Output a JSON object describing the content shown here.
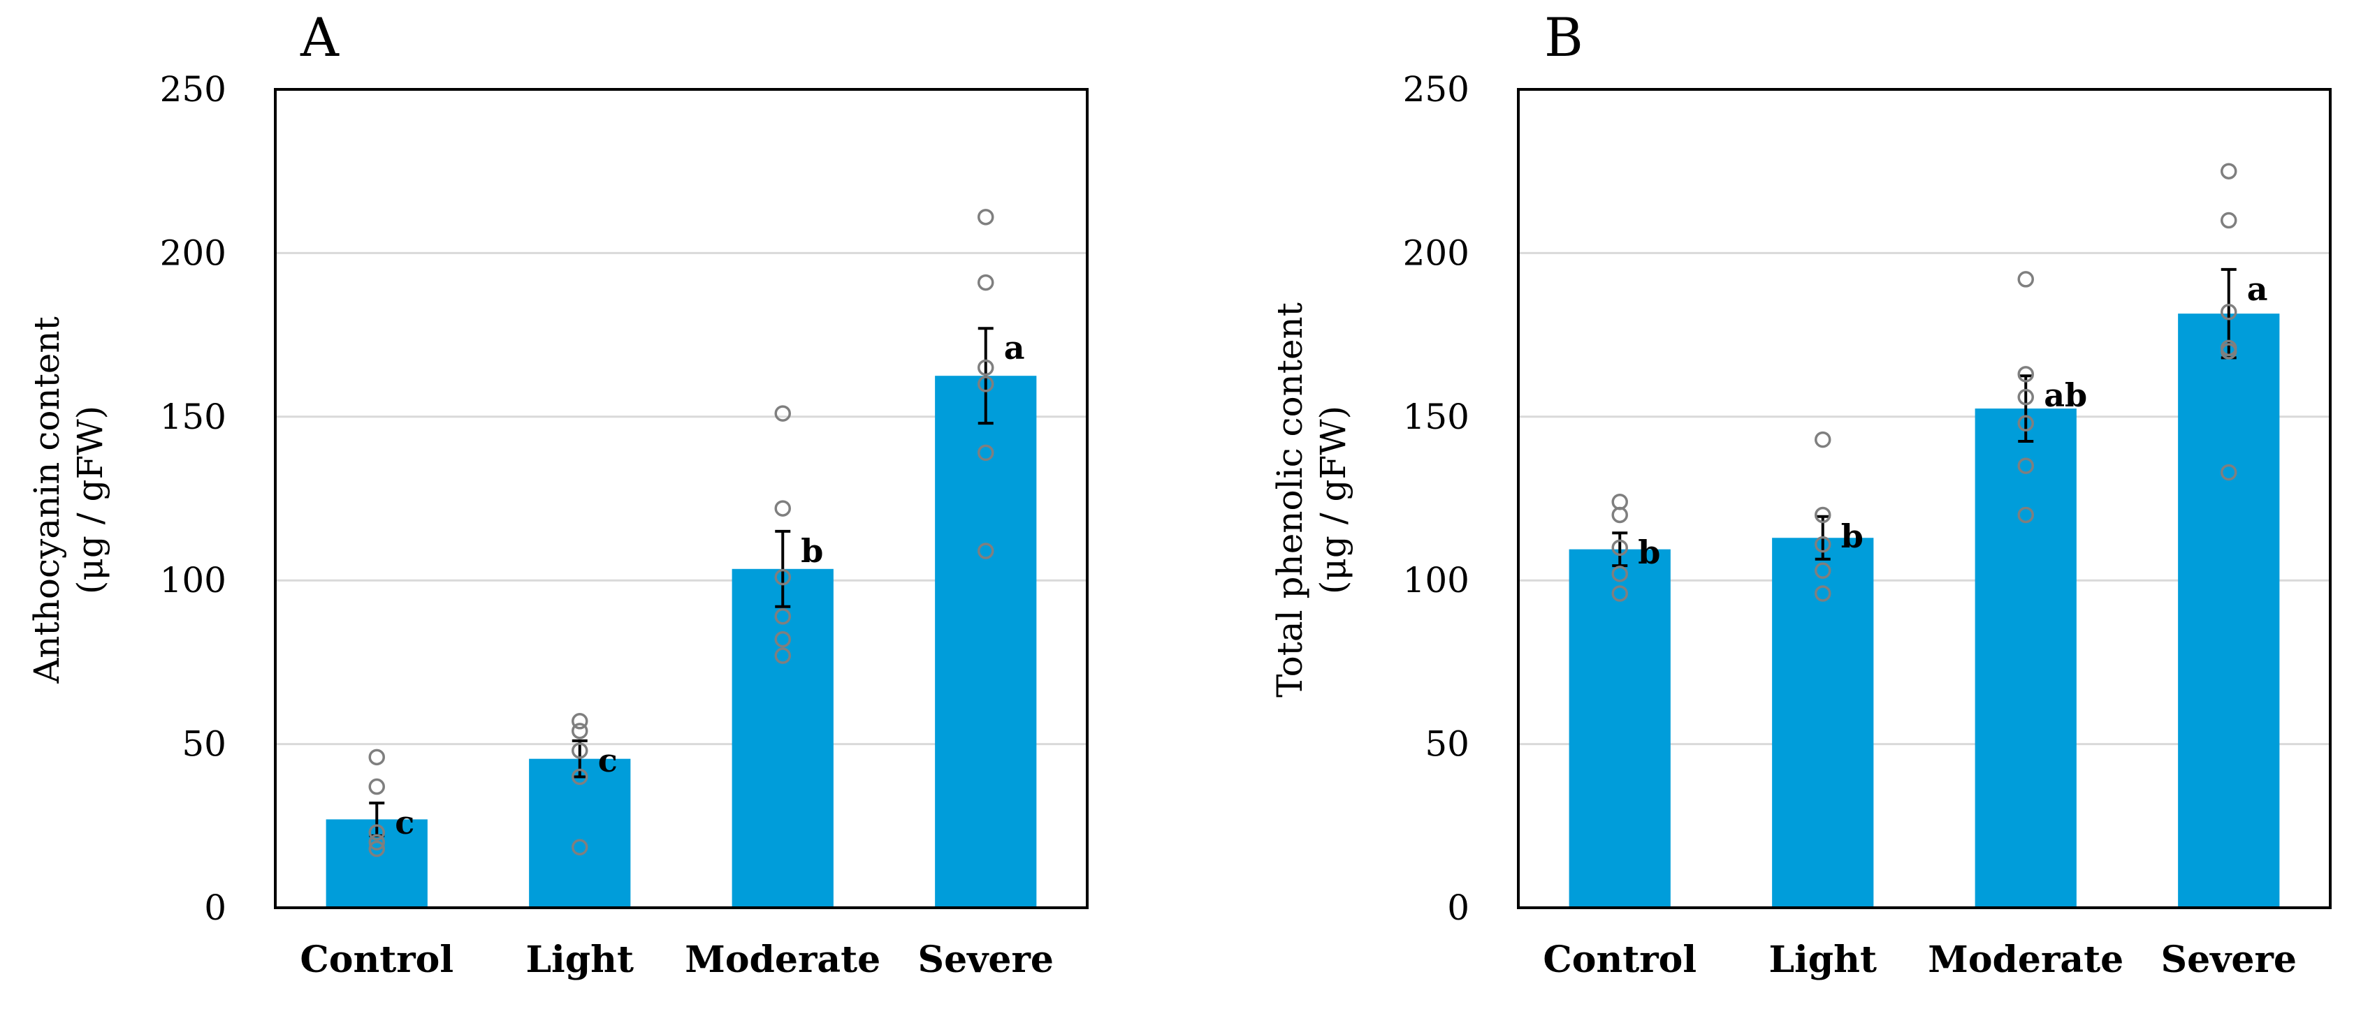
{
  "colors": {
    "bar": "#009DDA",
    "error_bar": "#000000",
    "point_stroke": "#7f7f7f",
    "grid": "#d9d9d9",
    "axis": "#000000"
  },
  "chart_data": [
    {
      "type": "bar",
      "panel_label": "A",
      "title": "",
      "categories": [
        "Control",
        "Light",
        "Moderate",
        "Severe"
      ],
      "values": [
        27,
        45.5,
        103.5,
        162.5
      ],
      "error": [
        5,
        5.5,
        11.5,
        14.5
      ],
      "significance": [
        "c",
        "c",
        "b",
        "a"
      ],
      "points": [
        [
          46,
          37,
          23,
          20,
          18
        ],
        [
          57,
          54,
          48,
          40,
          18.5
        ],
        [
          151,
          122,
          101,
          89,
          82,
          77
        ],
        [
          211,
          191,
          165,
          160,
          139,
          109
        ]
      ],
      "ylabel": [
        "Anthocyanin content",
        "(μg / gFW)"
      ],
      "xlabel": "",
      "ylim": [
        0,
        250
      ],
      "yticks": [
        0,
        50,
        100,
        150,
        200,
        250
      ],
      "grid": true
    },
    {
      "type": "bar",
      "panel_label": "B",
      "title": "",
      "categories": [
        "Control",
        "Light",
        "Moderate",
        "Severe"
      ],
      "values": [
        109.5,
        113,
        152.5,
        181.5
      ],
      "error": [
        5,
        6.5,
        10,
        13.5
      ],
      "significance": [
        "b",
        "b",
        "ab",
        "a"
      ],
      "points": [
        [
          124,
          120,
          110,
          102,
          96
        ],
        [
          143,
          120,
          111,
          103,
          96
        ],
        [
          192,
          163,
          156,
          148,
          135,
          120
        ],
        [
          225,
          210,
          182,
          171,
          170,
          133
        ]
      ],
      "ylabel": [
        "Total phenolic content",
        "(μg / gFW)"
      ],
      "xlabel": "",
      "ylim": [
        0,
        250
      ],
      "yticks": [
        0,
        50,
        100,
        150,
        200,
        250
      ],
      "grid": true
    }
  ]
}
